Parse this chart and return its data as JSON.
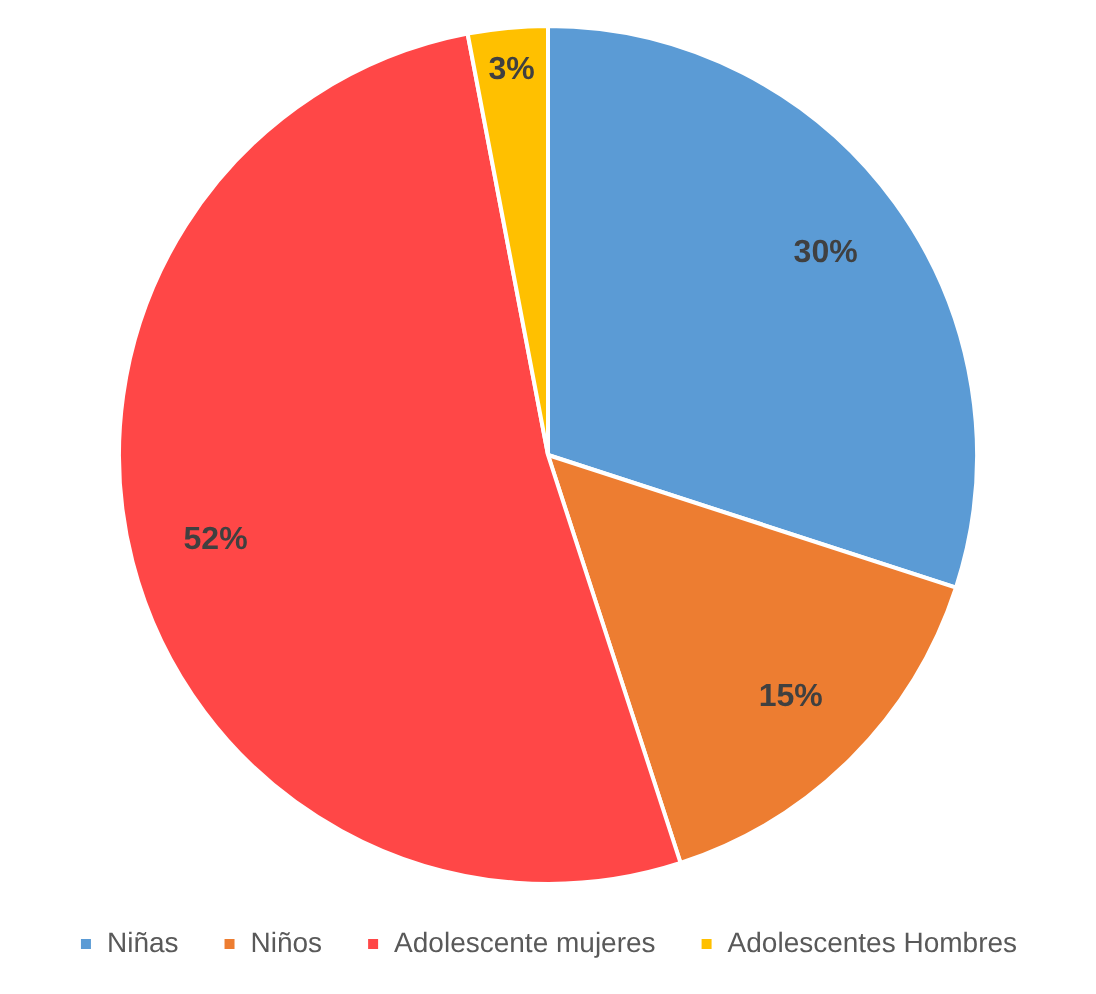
{
  "chart_data": {
    "type": "pie",
    "categories": [
      "Niñas",
      "Niños",
      "Adolescente mujeres",
      "Adolescentes Hombres"
    ],
    "values": [
      30,
      15,
      52,
      3
    ],
    "colors": [
      "#5b9bd5",
      "#ed7d31",
      "#ff4747",
      "#ffc000"
    ],
    "value_labels": [
      "30%",
      "15%",
      "52%",
      "3%"
    ],
    "legend": "bottom"
  }
}
